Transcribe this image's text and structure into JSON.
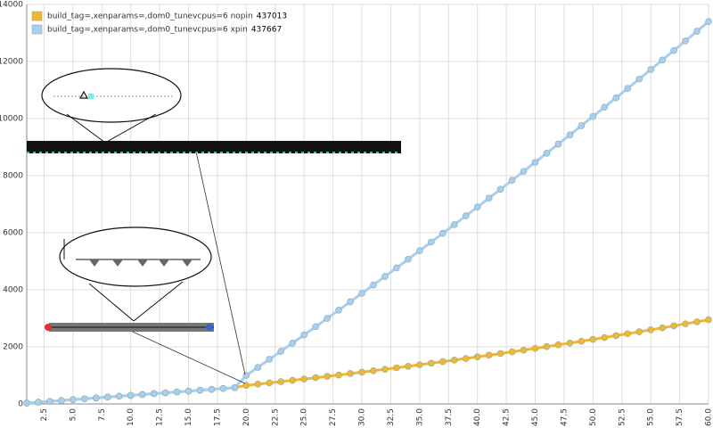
{
  "chart_data": {
    "type": "line",
    "x": [
      1,
      2,
      3,
      4,
      5,
      6,
      7,
      8,
      9,
      10,
      11,
      12,
      13,
      14,
      15,
      16,
      17,
      18,
      19,
      20,
      21,
      22,
      23,
      24,
      25,
      26,
      27,
      28,
      29,
      30,
      31,
      32,
      33,
      34,
      35,
      36,
      37,
      38,
      39,
      40,
      41,
      42,
      43,
      44,
      45,
      46,
      47,
      48,
      49,
      50,
      51,
      52,
      53,
      54,
      55,
      56,
      57,
      58,
      59,
      60
    ],
    "series": [
      {
        "name": "build_tag=,xenparams=,dom0_tunevcpus=6 nopin",
        "legend_value": "437013",
        "color": "#f0b733",
        "values": [
          30,
          60,
          90,
          120,
          150,
          180,
          210,
          240,
          270,
          300,
          330,
          360,
          390,
          420,
          450,
          480,
          510,
          540,
          570,
          650,
          693,
          737,
          781,
          826,
          872,
          919,
          966,
          1014,
          1063,
          1113,
          1163,
          1214,
          1266,
          1319,
          1372,
          1426,
          1481,
          1537,
          1593,
          1650,
          1708,
          1767,
          1826,
          1886,
          1947,
          2009,
          2071,
          2134,
          2198,
          2263,
          2328,
          2394,
          2461,
          2529,
          2597,
          2666,
          2736,
          2807,
          2878,
          2950
        ]
      },
      {
        "name": "build_tag=,xenparams=,dom0_tunevcpus=6 xpin",
        "legend_value": "437667",
        "color": "#a9cff0",
        "values": [
          30,
          60,
          90,
          120,
          150,
          180,
          210,
          240,
          270,
          300,
          330,
          360,
          390,
          420,
          450,
          480,
          510,
          540,
          570,
          1000,
          1281,
          1563,
          1847,
          2132,
          2419,
          2707,
          2997,
          3288,
          3581,
          3875,
          4171,
          4468,
          4767,
          5067,
          5369,
          5672,
          5977,
          6283,
          6591,
          6900,
          7211,
          7523,
          7837,
          8152,
          8469,
          8787,
          9107,
          9428,
          9751,
          10075,
          10401,
          10728,
          11057,
          11387,
          11719,
          12052,
          12387,
          12723,
          13061,
          13400
        ]
      }
    ],
    "xlim": [
      1,
      60
    ],
    "xticks": [
      2.5,
      {
        "value": 5,
        "label": "5.0"
      },
      7.5,
      {
        "value": 10,
        "label": "10.0"
      },
      12.5,
      {
        "value": 15,
        "label": "15.0"
      },
      17.5,
      {
        "value": 20,
        "label": "20.0"
      },
      22.5,
      {
        "value": 25,
        "label": "25.0"
      },
      27.5,
      {
        "value": 30,
        "label": "30.0"
      },
      32.5,
      {
        "value": 35,
        "label": "35.0"
      },
      37.5,
      {
        "value": 40,
        "label": "40.0"
      },
      42.5,
      {
        "value": 45,
        "label": "45.0"
      },
      47.5,
      {
        "value": 50,
        "label": "50.0"
      },
      52.5,
      {
        "value": 55,
        "label": "55.0"
      },
      57.5,
      {
        "value": 60,
        "label": "60.0"
      }
    ],
    "ylim": [
      0,
      14000
    ],
    "yticks": [
      0,
      2000,
      4000,
      6000,
      8000,
      10000,
      12000,
      14000
    ],
    "grid": true,
    "legend": "top-left"
  }
}
